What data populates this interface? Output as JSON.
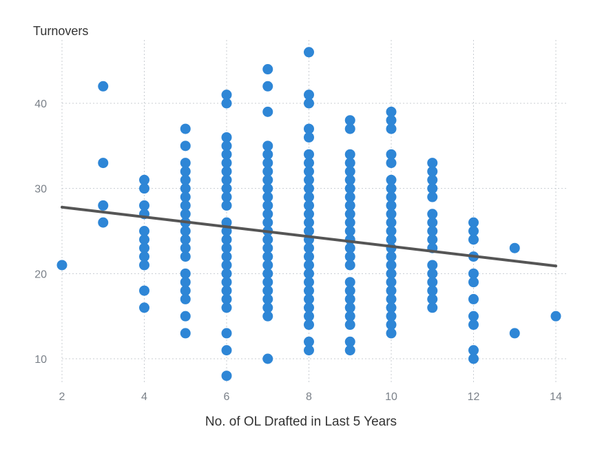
{
  "chart_data": {
    "type": "scatter",
    "ylabel": "Turnovers",
    "xlabel": "No. of OL Drafted in Last 5 Years",
    "xlim": [
      2,
      14
    ],
    "ylim": [
      7,
      48
    ],
    "x_ticks": [
      2,
      4,
      6,
      8,
      10,
      12,
      14
    ],
    "y_ticks": [
      10,
      20,
      30,
      40
    ],
    "grid": true,
    "point_color": "#2e86d6",
    "trendline_color": "#555555",
    "trendline": [
      [
        2,
        27.8
      ],
      [
        14,
        20.9
      ]
    ],
    "points": {
      "2": [
        21
      ],
      "3": [
        42,
        33,
        28,
        26
      ],
      "4": [
        31,
        30,
        28,
        27,
        25,
        24,
        23,
        22,
        21,
        18,
        16
      ],
      "5": [
        37,
        35,
        33,
        32,
        31,
        30,
        29,
        28,
        27,
        26,
        25,
        24,
        23,
        22,
        20,
        19,
        18,
        17,
        15,
        13
      ],
      "6": [
        41,
        40,
        36,
        35,
        34,
        33,
        32,
        31,
        30,
        29,
        28,
        26,
        25,
        24,
        23,
        22,
        21,
        20,
        19,
        18,
        17,
        16,
        13,
        11,
        8
      ],
      "7": [
        44,
        42,
        39,
        35,
        34,
        33,
        32,
        31,
        30,
        29,
        28,
        27,
        26,
        25,
        24,
        23,
        22,
        21,
        20,
        19,
        18,
        17,
        16,
        15,
        10
      ],
      "8": [
        46,
        41,
        40,
        37,
        36,
        34,
        33,
        32,
        31,
        30,
        29,
        28,
        27,
        26,
        25,
        24,
        23,
        22,
        21,
        20,
        19,
        18,
        17,
        16,
        15,
        14,
        12,
        11
      ],
      "9": [
        38,
        37,
        34,
        33,
        32,
        31,
        30,
        29,
        28,
        27,
        26,
        25,
        24,
        23,
        22,
        21,
        19,
        18,
        17,
        16,
        15,
        14,
        12,
        11
      ],
      "10": [
        39,
        38,
        37,
        34,
        33,
        31,
        30,
        29,
        28,
        27,
        26,
        25,
        24,
        23,
        22,
        21,
        20,
        19,
        18,
        17,
        16,
        15,
        14,
        13
      ],
      "11": [
        33,
        32,
        31,
        30,
        29,
        27,
        26,
        25,
        24,
        23,
        21,
        20,
        19,
        18,
        17,
        16
      ],
      "12": [
        26,
        25,
        24,
        22,
        20,
        19,
        17,
        15,
        14,
        11,
        10
      ],
      "13": [
        23,
        13
      ],
      "14": [
        15
      ]
    }
  }
}
